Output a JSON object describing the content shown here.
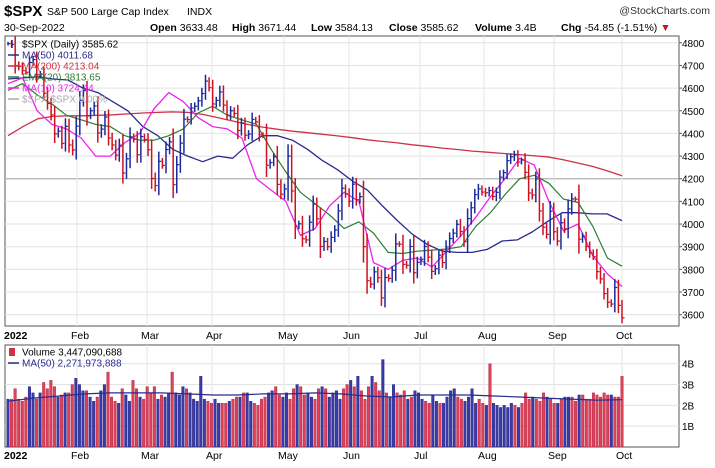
{
  "header": {
    "symbol": "$SPX",
    "name": "S&P 500 Large Cap Index",
    "exchange": "INDX",
    "watermark": "@StockCharts.com",
    "date": "30-Sep-2022",
    "open_label": "Open",
    "open": "3633.48",
    "high_label": "High",
    "high": "3671.44",
    "low_label": "Low",
    "low": "3584.13",
    "close_label": "Close",
    "close": "3585.62",
    "volume_label": "Volume",
    "volume": "3.4B",
    "chg_label": "Chg",
    "chg": "-54.85 (-1.51%)",
    "chg_marker": "▼"
  },
  "legend_price": [
    {
      "text": "$SPX (Daily) 3585.62",
      "color": "#000000",
      "marker": "bar"
    },
    {
      "text": "MA(50) 4011.68",
      "color": "#2b2b8f",
      "marker": "line"
    },
    {
      "text": "MA(200) 4213.04",
      "color": "#cc3344",
      "marker": "line"
    },
    {
      "text": "EMA(20) 3813.65",
      "color": "#2e7d32",
      "marker": "line"
    },
    {
      "text": "MA(10) 3724.44",
      "color": "#ee22ee",
      "marker": "line"
    },
    {
      "text": "$SPX:$SPX 0.00%",
      "color": "#aaaaaa",
      "marker": "line"
    }
  ],
  "legend_volume": [
    {
      "text": "Volume 3,447,090,688",
      "color": "#cc3344",
      "marker": "bar"
    },
    {
      "text": "MA(50) 2,271,973,888",
      "color": "#2b2b8f",
      "marker": "line"
    }
  ],
  "chart_data": {
    "type": "line",
    "title": "$SPX S&P 500 Large Cap Index INDX",
    "x_labels": [
      "2022",
      "Feb",
      "Mar",
      "Apr",
      "May",
      "Jun",
      "Jul",
      "Aug",
      "Sep",
      "Oct"
    ],
    "price_axis": {
      "ticks": [
        "3600",
        "3700",
        "3800",
        "3900",
        "4000",
        "4100",
        "4200",
        "4300",
        "4400",
        "4500",
        "4600",
        "4700",
        "4800"
      ],
      "ylim": [
        3550,
        4830
      ]
    },
    "volume_axis": {
      "ticks": [
        "1B",
        "2B",
        "3B",
        "4B"
      ],
      "ylim": [
        0,
        4.9
      ]
    },
    "reference_level": 4200,
    "series": [
      {
        "name": "$SPX (Daily)",
        "color": "#2233aa",
        "values": [
          4796,
          4793,
          4700,
          4696,
          4677,
          4670,
          4713,
          4726,
          4659,
          4662,
          4577,
          4532,
          4482,
          4398,
          4410,
          4356,
          4431,
          4349,
          4327,
          4432,
          4546,
          4589,
          4477,
          4500,
          4521,
          4402,
          4419,
          4472,
          4380,
          4349,
          4304,
          4348,
          4225,
          4288,
          4385,
          4374,
          4306,
          4386,
          4373,
          4328,
          4201,
          4170,
          4277,
          4259,
          4329,
          4363,
          4174,
          4262,
          4357,
          4463,
          4461,
          4512,
          4520,
          4544,
          4576,
          4631,
          4602,
          4530,
          4546,
          4583,
          4525,
          4481,
          4500,
          4488,
          4413,
          4446,
          4392,
          4397,
          4462,
          4451,
          4394,
          4391,
          4260,
          4271,
          4297,
          4175,
          4132,
          4155,
          4300,
          4146,
          3991,
          4001,
          3935,
          3930,
          4008,
          4088,
          4023,
          3901,
          3923,
          3900,
          3941,
          3974,
          4058,
          4158,
          4133,
          4101,
          4176,
          4108,
          4121,
          3900,
          3750,
          3735,
          3789,
          3763,
          3674,
          3764,
          3760,
          3796,
          3912,
          3911,
          3822,
          3818,
          3901,
          3785,
          3831,
          3845,
          3901,
          3854,
          3791,
          3803,
          3863,
          3830,
          3899,
          3936,
          3960,
          3999,
          3967,
          3922,
          4024,
          4072,
          4130,
          4155,
          4141,
          4138,
          4148,
          4122,
          4140,
          4207,
          4227,
          4280,
          4297,
          4305,
          4274,
          4283,
          4228,
          4137,
          4128,
          4199,
          4058,
          3986,
          3955,
          4057,
          3966,
          3925,
          4006,
          3979,
          4067,
          4111,
          4110,
          3933,
          3946,
          3901,
          3873,
          3856,
          3790,
          3758,
          3693,
          3655,
          3647,
          3720,
          3641,
          3586
        ]
      },
      {
        "name": "MA(50)",
        "color": "#2b2b8f",
        "values": [
          4640,
          4645,
          4650,
          4640,
          4636,
          4600,
          4580,
          4540,
          4500,
          4430,
          4390,
          4330,
          4300,
          4275,
          4300,
          4290,
          4350,
          4390,
          4390,
          4370,
          4330,
          4280,
          4240,
          4190,
          4150,
          4080,
          4015,
          3955,
          3910,
          3880,
          3875,
          3875,
          3888,
          3925,
          3930,
          3965,
          4010,
          4050,
          4050,
          4045,
          4045,
          4015
        ]
      },
      {
        "name": "MA(200)",
        "color": "#cc3344",
        "values": [
          4390,
          4430,
          4465,
          4475,
          4478,
          4478,
          4480,
          4482,
          4486,
          4490,
          4493,
          4495,
          4493,
          4484,
          4470,
          4455,
          4440,
          4428,
          4418,
          4410,
          4403,
          4396,
          4389,
          4381,
          4372,
          4365,
          4358,
          4350,
          4343,
          4335,
          4329,
          4322,
          4317,
          4312,
          4307,
          4302,
          4297,
          4285,
          4270,
          4255,
          4235,
          4213
        ]
      },
      {
        "name": "EMA(20)",
        "color": "#2e7d32",
        "values": [
          4590,
          4620,
          4570,
          4530,
          4480,
          4460,
          4440,
          4430,
          4390,
          4370,
          4370,
          4390,
          4420,
          4490,
          4520,
          4480,
          4460,
          4440,
          4330,
          4230,
          4140,
          4090,
          4040,
          3980,
          4010,
          3960,
          3875,
          3870,
          3880,
          3885,
          3890,
          3900,
          3990,
          4050,
          4130,
          4200,
          4215,
          4180,
          4110,
          4095,
          3990,
          3850,
          3814
        ]
      },
      {
        "name": "MA(10)",
        "color": "#ee22ee",
        "values": [
          4620,
          4645,
          4500,
          4440,
          4420,
          4380,
          4300,
          4300,
          4360,
          4400,
          4510,
          4580,
          4540,
          4470,
          4430,
          4420,
          4380,
          4200,
          4150,
          4100,
          3950,
          3980,
          4080,
          4140,
          4100,
          3830,
          3800,
          3840,
          3850,
          3810,
          3880,
          3950,
          4030,
          4120,
          4200,
          4290,
          4260,
          4100,
          3970,
          4000,
          3860,
          3780,
          3724
        ]
      },
      {
        "name": "Volume",
        "color": "#cc3344",
        "values": [
          2.3,
          2.3,
          2.8,
          2.3,
          2.2,
          2.4,
          2.9,
          2.6,
          2.3,
          2.6,
          3.1,
          2.8,
          3.2,
          2.9,
          2.4,
          2.5,
          2.6,
          2.6,
          3.0,
          3.3,
          3.0,
          2.7,
          2.7,
          2.4,
          2.2,
          2.4,
          2.7,
          3.0,
          3.6,
          2.4,
          2.2,
          2.1,
          2.8,
          2.5,
          2.2,
          3.2,
          2.8,
          2.4,
          2.3,
          2.9,
          2.6,
          2.9,
          2.3,
          2.5,
          2.4,
          2.6,
          3.6,
          2.6,
          2.5,
          2.9,
          2.8,
          2.6,
          2.3,
          2.2,
          3.4,
          2.3,
          2.2,
          2.1,
          2.3,
          2.1,
          2.1,
          2.1,
          2.2,
          2.3,
          2.4,
          2.4,
          2.6,
          2.6,
          2.2,
          2.1,
          2.0,
          2.3,
          2.4,
          2.6,
          2.7,
          2.9,
          2.5,
          2.4,
          2.6,
          2.3,
          2.8,
          3.0,
          2.9,
          2.5,
          2.6,
          2.4,
          2.3,
          2.8,
          2.9,
          2.8,
          2.4,
          2.6,
          2.7,
          2.3,
          2.8,
          3.0,
          3.2,
          2.9,
          3.4,
          2.7,
          2.3,
          2.9,
          3.4,
          3.1,
          2.7,
          4.2,
          2.6,
          2.4,
          3.0,
          2.6,
          2.5,
          2.7,
          2.3,
          2.4,
          2.7,
          2.6,
          2.3,
          2.2,
          2.1,
          2.5,
          2.2,
          2.1,
          2.1,
          2.4,
          2.7,
          2.8,
          2.4,
          2.3,
          2.2,
          2.4,
          2.8,
          2.1,
          2.3,
          2.1,
          2.0,
          4.0,
          2.1,
          2.0,
          1.9,
          2.0,
          1.9,
          2.1,
          2.0,
          1.9,
          2.1,
          2.6,
          2.3,
          2.4,
          2.3,
          2.2,
          2.6,
          2.4,
          2.3,
          2.1,
          2.1,
          2.3,
          2.4,
          2.4,
          2.4,
          2.2,
          2.5,
          2.5,
          2.3,
          2.3,
          2.6,
          2.5,
          2.4,
          2.6,
          2.5,
          2.5,
          2.4,
          2.4,
          3.4
        ]
      },
      {
        "name": "Volume MA(50)",
        "color": "#2b2b8f",
        "values": [
          2.2,
          2.35,
          2.45,
          2.55,
          2.6,
          2.6,
          2.6,
          2.55,
          2.5,
          2.5,
          2.55,
          2.55,
          2.6,
          2.55,
          2.45,
          2.4,
          2.5,
          2.5,
          2.5,
          2.45,
          2.4,
          2.35,
          2.3,
          2.25,
          2.27
        ]
      }
    ]
  }
}
